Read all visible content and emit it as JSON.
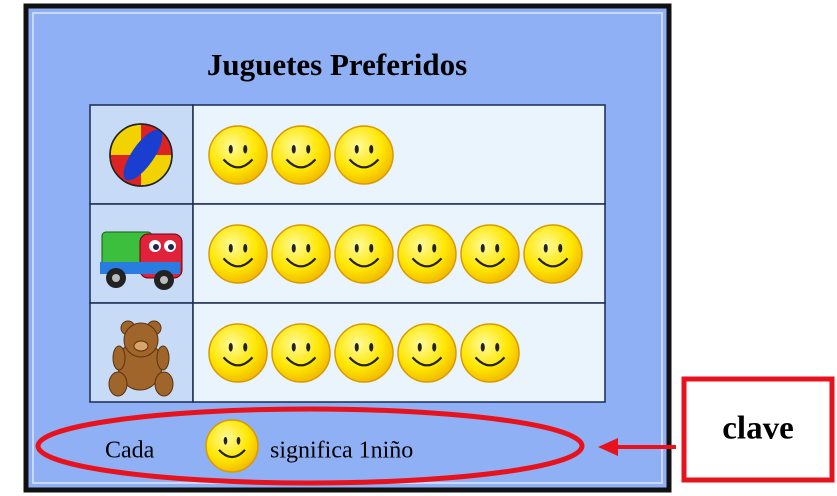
{
  "chart_data": {
    "type": "pictograph",
    "title": "Juguetes Preferidos",
    "categories": [
      null,
      null,
      null
    ],
    "values": [
      3,
      6,
      5
    ],
    "key": {
      "prefix": "Cada",
      "suffix": "significa 1niño"
    },
    "annotation": "clave"
  }
}
